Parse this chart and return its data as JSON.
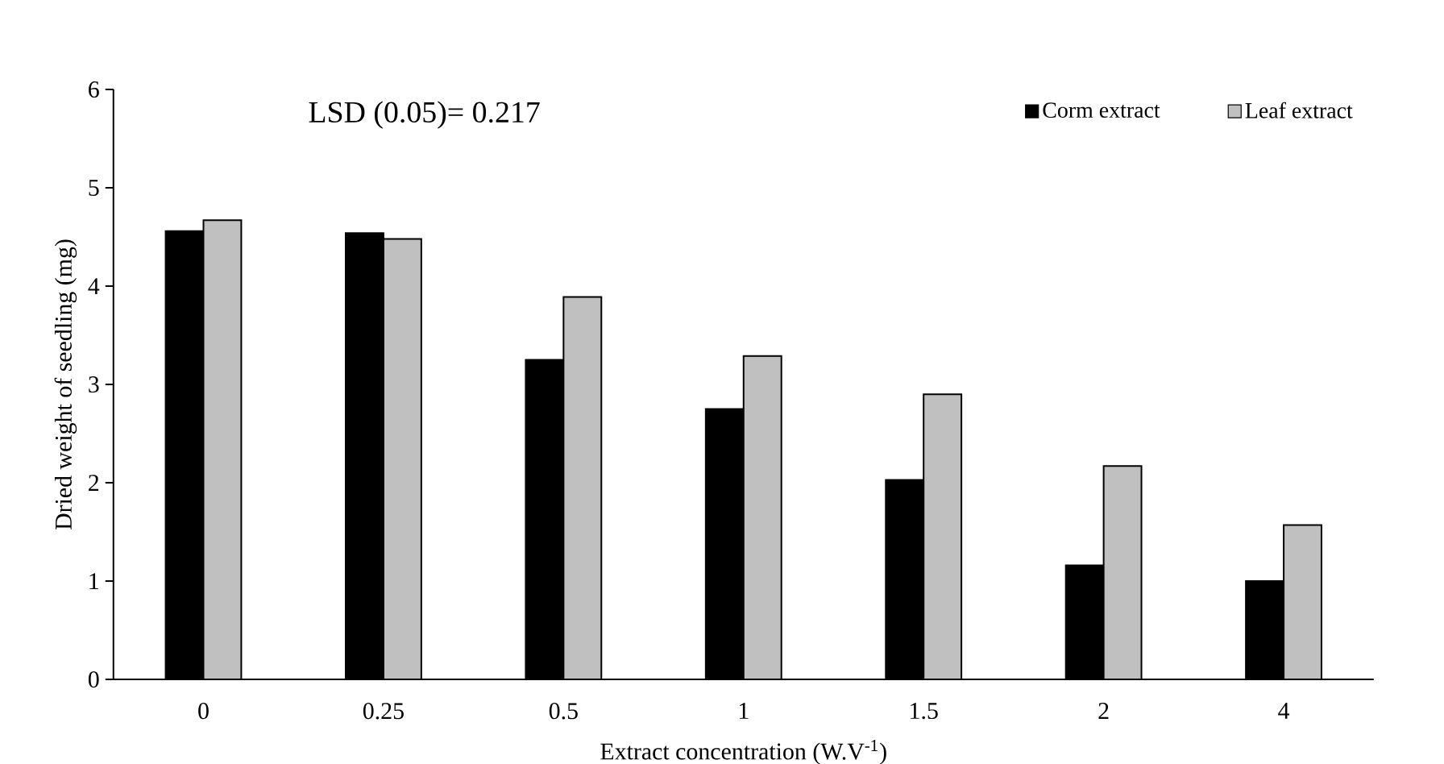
{
  "chart_data": {
    "type": "bar",
    "xlabel": "Extract concentration (W.V$^{-1}$)",
    "ylabel": "Dried weight of seedling (mg)",
    "categories": [
      "0",
      "0.25",
      "0.5",
      "1",
      "1.5",
      "2",
      "4"
    ],
    "series": [
      {
        "name": "Corm extract",
        "color": "#000000",
        "values": [
          4.56,
          4.54,
          3.25,
          2.75,
          2.03,
          1.16,
          1.0
        ]
      },
      {
        "name": "Leaf extract",
        "color": "#c0c0c0",
        "values": [
          4.67,
          4.48,
          3.89,
          3.29,
          2.9,
          2.17,
          1.57
        ]
      }
    ],
    "ylim": [
      0,
      6
    ],
    "yticks": [
      0,
      1,
      2,
      3,
      4,
      5,
      6
    ],
    "grid": false,
    "legend": "top right",
    "annotations": [
      "LSD (0.05)= 0.217"
    ]
  }
}
